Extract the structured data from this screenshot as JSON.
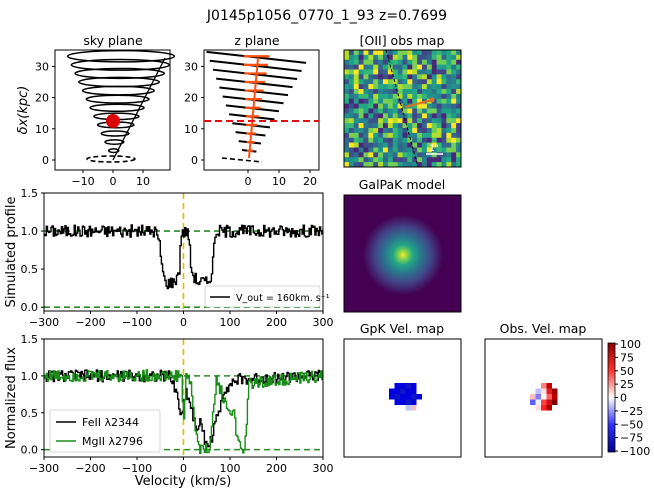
{
  "figure_title": "J0145p1056_0770_1_93 z=0.7699",
  "panels": {
    "sky": {
      "title": "sky plane",
      "ylabel": "δx(kpc)",
      "xticks": [
        "−10",
        "0",
        "10"
      ],
      "yticks": [
        "0",
        "10",
        "20",
        "30"
      ]
    },
    "zplane": {
      "title": "z plane",
      "xticks": [
        "0",
        "10",
        "20"
      ],
      "yticks": [
        "0",
        "10",
        "20",
        "30"
      ]
    },
    "obsmap": {
      "title": "[OII] obs map",
      "scale_label": "1\""
    },
    "galpak": {
      "title": "GalPaK model"
    },
    "gpkvel": {
      "title": "GpK Vel. map"
    },
    "obsvel": {
      "title": "Obs. Vel. map"
    },
    "colorbar": {
      "ticks": [
        "100",
        "75",
        "50",
        "25",
        "0",
        "−25",
        "−50",
        "−75",
        "−100"
      ],
      "colors": {
        "high": "#8b0000",
        "mid": "#ffffff",
        "low": "#00008b"
      }
    },
    "sim": {
      "ylabel": "Simulated profile",
      "legend": "V_out = 160km. s⁻¹",
      "yticks": [
        "0.0",
        "0.5",
        "1.0",
        "1.5"
      ],
      "xticks": [
        "−300",
        "−200",
        "−100",
        "0",
        "100",
        "200",
        "300"
      ]
    },
    "flux": {
      "ylabel": "Normalized flux",
      "xlabel": "Velocity (km/s)",
      "legend": [
        "FeII λ2344",
        "MgII λ2796"
      ],
      "yticks": [
        "0.0",
        "0.5",
        "1.0",
        "1.5"
      ],
      "xticks": [
        "−300",
        "−200",
        "−100",
        "0",
        "100",
        "200",
        "300"
      ]
    }
  },
  "chart_data": [
    {
      "type": "line",
      "title": "Simulated profile",
      "x_range": [
        -300,
        300
      ],
      "ylim": [
        0,
        1.5
      ],
      "series": [
        {
          "name": "Simulated profile V_out=160",
          "color": "#000000",
          "x": [
            -300,
            -60,
            -52,
            -45,
            -40,
            -20,
            -10,
            -5,
            0,
            5,
            10,
            15,
            20,
            30,
            40,
            50,
            60,
            68,
            300
          ],
          "y": [
            1.0,
            1.0,
            0.8,
            0.45,
            0.32,
            0.33,
            0.5,
            1.0,
            0.98,
            1.0,
            0.95,
            0.55,
            0.42,
            0.34,
            0.34,
            0.32,
            0.45,
            1.0,
            1.0
          ]
        }
      ],
      "hlines": [
        {
          "y": 1.0,
          "style": "dashed",
          "color": "#2a8c2a"
        },
        {
          "y": 0.0,
          "style": "dashed",
          "color": "#2a8c2a"
        }
      ],
      "vlines": [
        {
          "x": 0,
          "style": "dashed",
          "color": "#c8c800"
        }
      ]
    },
    {
      "type": "line",
      "title": "Normalized flux",
      "x_range": [
        -300,
        300
      ],
      "ylim": [
        -0.1,
        1.5
      ],
      "series": [
        {
          "name": "FeII λ2344",
          "color": "#000000",
          "x": [
            -300,
            -30,
            -15,
            -5,
            5,
            15,
            25,
            35,
            45,
            55,
            65,
            75,
            85,
            100,
            120,
            300
          ],
          "y": [
            1.0,
            1.0,
            0.75,
            0.45,
            0.8,
            0.6,
            0.3,
            0.35,
            0.15,
            0.05,
            0.3,
            0.5,
            0.8,
            0.9,
            0.95,
            1.0
          ]
        },
        {
          "name": "MgII λ2796",
          "color": "#1a8c1a",
          "x": [
            -300,
            -5,
            0,
            5,
            15,
            25,
            35,
            45,
            55,
            62,
            70,
            80,
            90,
            100,
            108,
            115,
            125,
            132,
            140,
            300
          ],
          "y": [
            1.0,
            1.0,
            0.4,
            1.0,
            0.9,
            0.25,
            0.0,
            0.0,
            0.05,
            0.4,
            0.95,
            0.8,
            0.6,
            0.5,
            0.55,
            0.1,
            0.0,
            0.05,
            0.9,
            1.0
          ]
        }
      ],
      "hlines": [
        {
          "y": 1.0,
          "style": "dashed",
          "color": "#2a8c2a"
        },
        {
          "y": 0.0,
          "style": "dashed",
          "color": "#2a8c2a"
        }
      ],
      "vlines": [
        {
          "x": 0,
          "style": "dashed",
          "color": "#c8c800"
        }
      ]
    }
  ]
}
